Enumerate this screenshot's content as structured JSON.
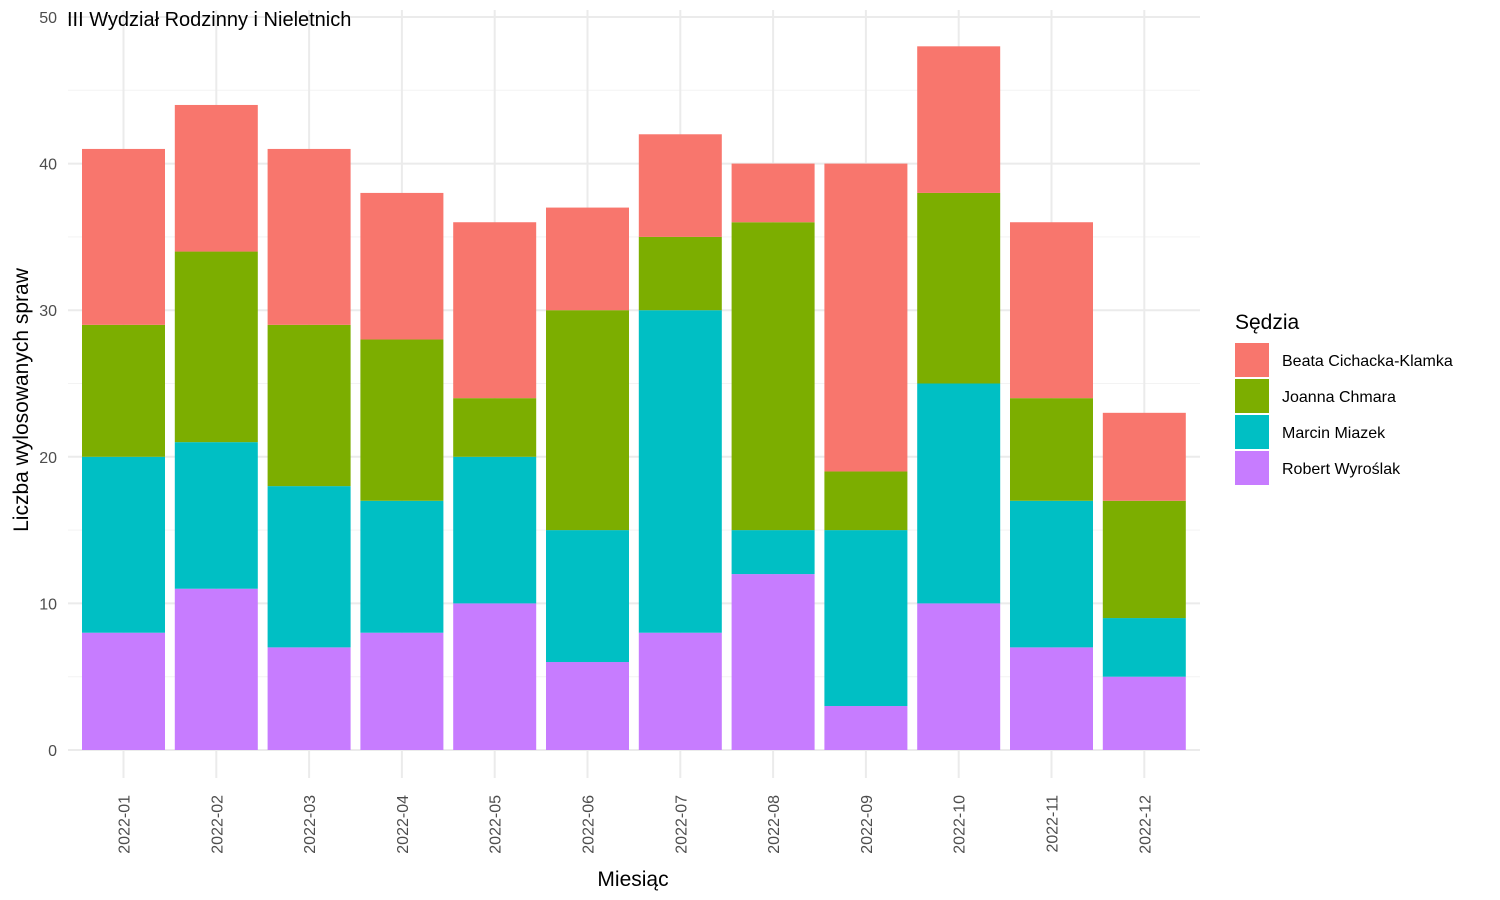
{
  "chart_data": {
    "type": "bar",
    "stacked": true,
    "title": "III Wydział Rodzinny i Nieletnich",
    "xlabel": "Miesiąc",
    "ylabel": "Liczba wylosowanych spraw",
    "ylim": [
      0,
      50
    ],
    "yticks": [
      0,
      10,
      20,
      30,
      40,
      50
    ],
    "grid": true,
    "legend": {
      "title": "Sędzia",
      "placement": "right"
    },
    "categories": [
      "2022-01",
      "2022-02",
      "2022-03",
      "2022-04",
      "2022-05",
      "2022-06",
      "2022-07",
      "2022-08",
      "2022-09",
      "2022-10",
      "2022-11",
      "2022-12"
    ],
    "series": [
      {
        "name": "Beata Cichacka-Klamka",
        "color": "#F8766D",
        "values": [
          12,
          10,
          12,
          10,
          12,
          7,
          7,
          4,
          21,
          10,
          12,
          6
        ]
      },
      {
        "name": "Joanna Chmara",
        "color": "#7CAE00",
        "values": [
          9,
          13,
          11,
          11,
          4,
          15,
          5,
          21,
          4,
          13,
          7,
          8
        ]
      },
      {
        "name": "Marcin Miazek",
        "color": "#00BFC4",
        "values": [
          12,
          10,
          11,
          9,
          10,
          9,
          22,
          3,
          12,
          15,
          10,
          4
        ]
      },
      {
        "name": "Robert Wyroślak",
        "color": "#C77CFF",
        "values": [
          8,
          11,
          7,
          8,
          10,
          6,
          8,
          12,
          3,
          10,
          7,
          5
        ]
      }
    ]
  }
}
